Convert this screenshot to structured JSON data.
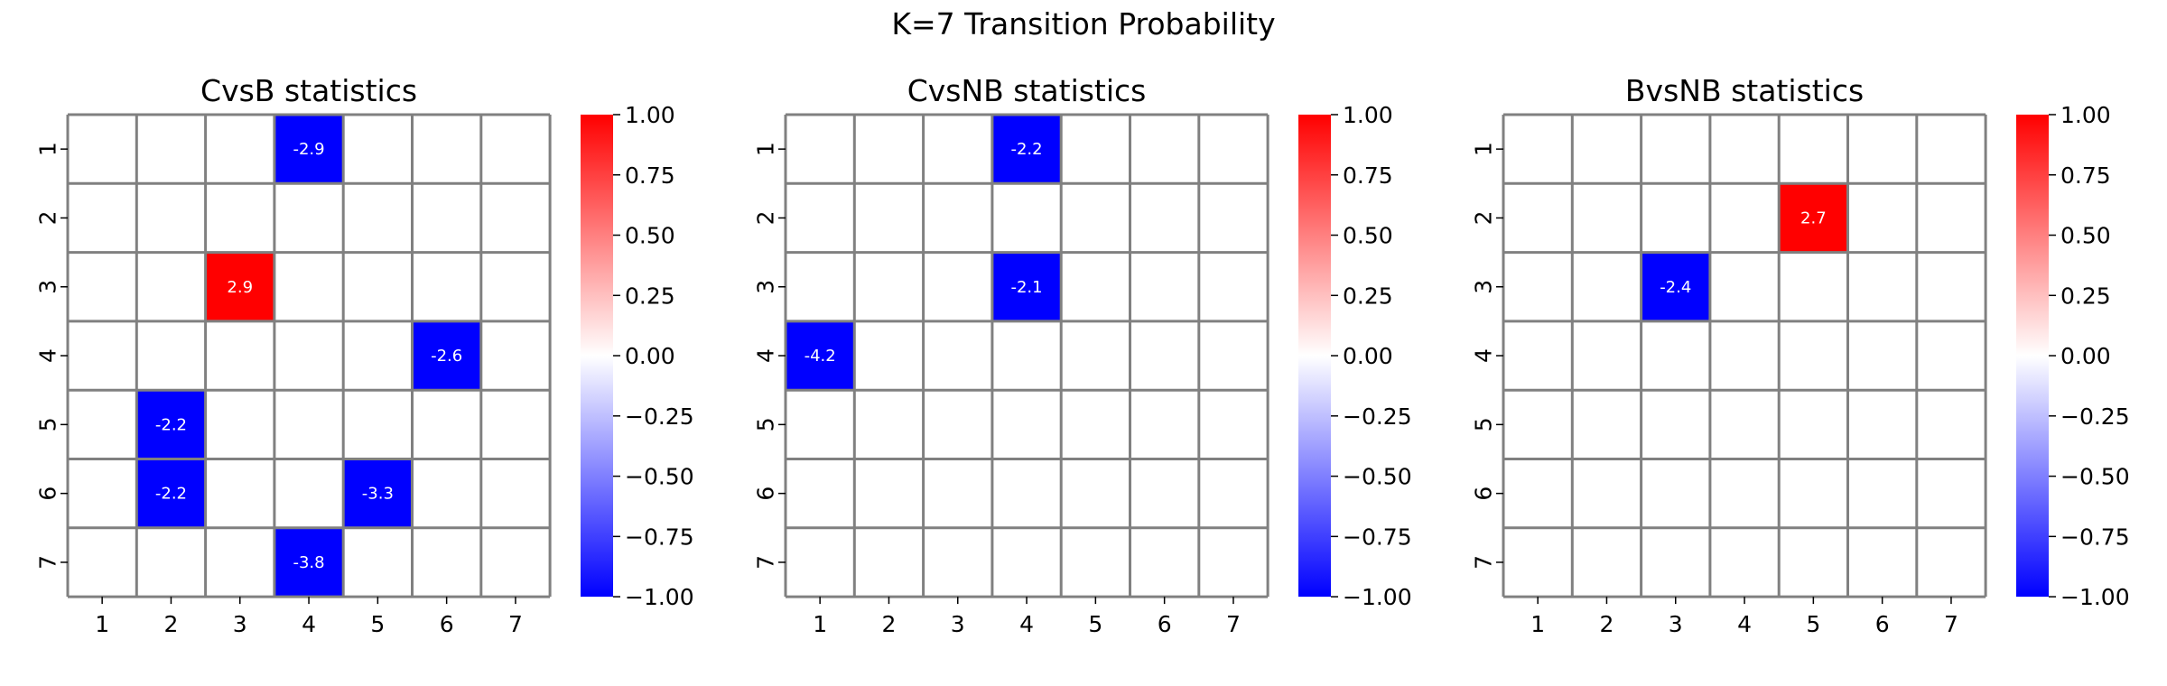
{
  "figure": {
    "suptitle": "K=7 Transition Probability"
  },
  "chart_data": [
    {
      "type": "heatmap",
      "title": "CvsB statistics",
      "xlabel": "",
      "ylabel": "",
      "x_ticks": [
        "1",
        "2",
        "3",
        "4",
        "5",
        "6",
        "7"
      ],
      "y_ticks": [
        "1",
        "2",
        "3",
        "4",
        "5",
        "6",
        "7"
      ],
      "colormap": "bwr",
      "color_min": "#0000ff",
      "color_mid": "#ffffff",
      "color_max": "#ff0000",
      "grid_color": "#808080",
      "clim": [
        -1,
        1
      ],
      "colorbar_ticks": [
        "1.00",
        "0.75",
        "0.50",
        "0.25",
        "0.00",
        "−0.25",
        "−0.50",
        "−0.75",
        "−1.00"
      ],
      "colorbar_tick_values": [
        1,
        0.75,
        0.5,
        0.25,
        0,
        -0.25,
        -0.5,
        -0.75,
        -1
      ],
      "cells": [
        {
          "row": 1,
          "col": 4,
          "value": -2.9,
          "label": "-2.9"
        },
        {
          "row": 3,
          "col": 3,
          "value": 2.9,
          "label": "2.9"
        },
        {
          "row": 4,
          "col": 6,
          "value": -2.6,
          "label": "-2.6"
        },
        {
          "row": 5,
          "col": 2,
          "value": -2.2,
          "label": "-2.2"
        },
        {
          "row": 6,
          "col": 2,
          "value": -2.2,
          "label": "-2.2"
        },
        {
          "row": 6,
          "col": 5,
          "value": -3.3,
          "label": "-3.3"
        },
        {
          "row": 7,
          "col": 4,
          "value": -3.8,
          "label": "-3.8"
        }
      ]
    },
    {
      "type": "heatmap",
      "title": "CvsNB statistics",
      "xlabel": "",
      "ylabel": "",
      "x_ticks": [
        "1",
        "2",
        "3",
        "4",
        "5",
        "6",
        "7"
      ],
      "y_ticks": [
        "1",
        "2",
        "3",
        "4",
        "5",
        "6",
        "7"
      ],
      "colormap": "bwr",
      "color_min": "#0000ff",
      "color_mid": "#ffffff",
      "color_max": "#ff0000",
      "grid_color": "#808080",
      "clim": [
        -1,
        1
      ],
      "colorbar_ticks": [
        "1.00",
        "0.75",
        "0.50",
        "0.25",
        "0.00",
        "−0.25",
        "−0.50",
        "−0.75",
        "−1.00"
      ],
      "colorbar_tick_values": [
        1,
        0.75,
        0.5,
        0.25,
        0,
        -0.25,
        -0.5,
        -0.75,
        -1
      ],
      "cells": [
        {
          "row": 1,
          "col": 4,
          "value": -2.2,
          "label": "-2.2"
        },
        {
          "row": 3,
          "col": 4,
          "value": -2.1,
          "label": "-2.1"
        },
        {
          "row": 4,
          "col": 1,
          "value": -4.2,
          "label": "-4.2"
        }
      ]
    },
    {
      "type": "heatmap",
      "title": "BvsNB statistics",
      "xlabel": "",
      "ylabel": "",
      "x_ticks": [
        "1",
        "2",
        "3",
        "4",
        "5",
        "6",
        "7"
      ],
      "y_ticks": [
        "1",
        "2",
        "3",
        "4",
        "5",
        "6",
        "7"
      ],
      "colormap": "bwr",
      "color_min": "#0000ff",
      "color_mid": "#ffffff",
      "color_max": "#ff0000",
      "grid_color": "#808080",
      "clim": [
        -1,
        1
      ],
      "colorbar_ticks": [
        "1.00",
        "0.75",
        "0.50",
        "0.25",
        "0.00",
        "−0.25",
        "−0.50",
        "−0.75",
        "−1.00"
      ],
      "colorbar_tick_values": [
        1,
        0.75,
        0.5,
        0.25,
        0,
        -0.25,
        -0.5,
        -0.75,
        -1
      ],
      "cells": [
        {
          "row": 2,
          "col": 5,
          "value": 2.7,
          "label": "2.7"
        },
        {
          "row": 3,
          "col": 3,
          "value": -2.4,
          "label": "-2.4"
        }
      ]
    }
  ]
}
